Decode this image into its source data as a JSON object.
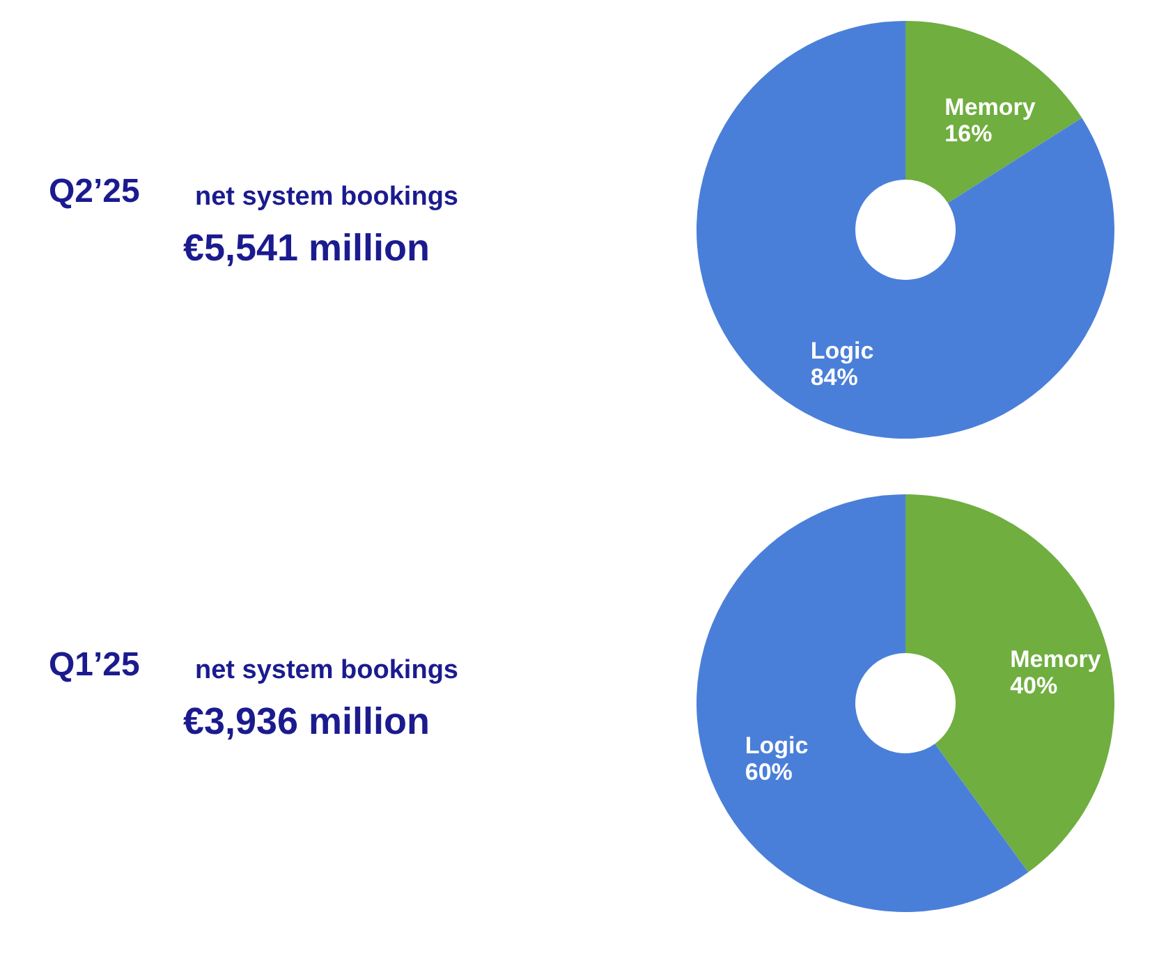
{
  "chart_data": [
    {
      "type": "donut",
      "annotations": [
        "Q2’25",
        "net system bookings",
        "€5,541 million"
      ],
      "categories": [
        "Memory",
        "Logic"
      ],
      "values": [
        16,
        84
      ],
      "value_labels": [
        "16%",
        "84%"
      ],
      "colors": [
        "#6fae3f",
        "#4a7fd9"
      ]
    },
    {
      "type": "donut",
      "annotations": [
        "Q1’25",
        "net system bookings",
        "€3,936 million"
      ],
      "categories": [
        "Memory",
        "Logic"
      ],
      "values": [
        40,
        60
      ],
      "value_labels": [
        "40%",
        "60%"
      ],
      "colors": [
        "#6fae3f",
        "#4a7fd9"
      ]
    }
  ]
}
